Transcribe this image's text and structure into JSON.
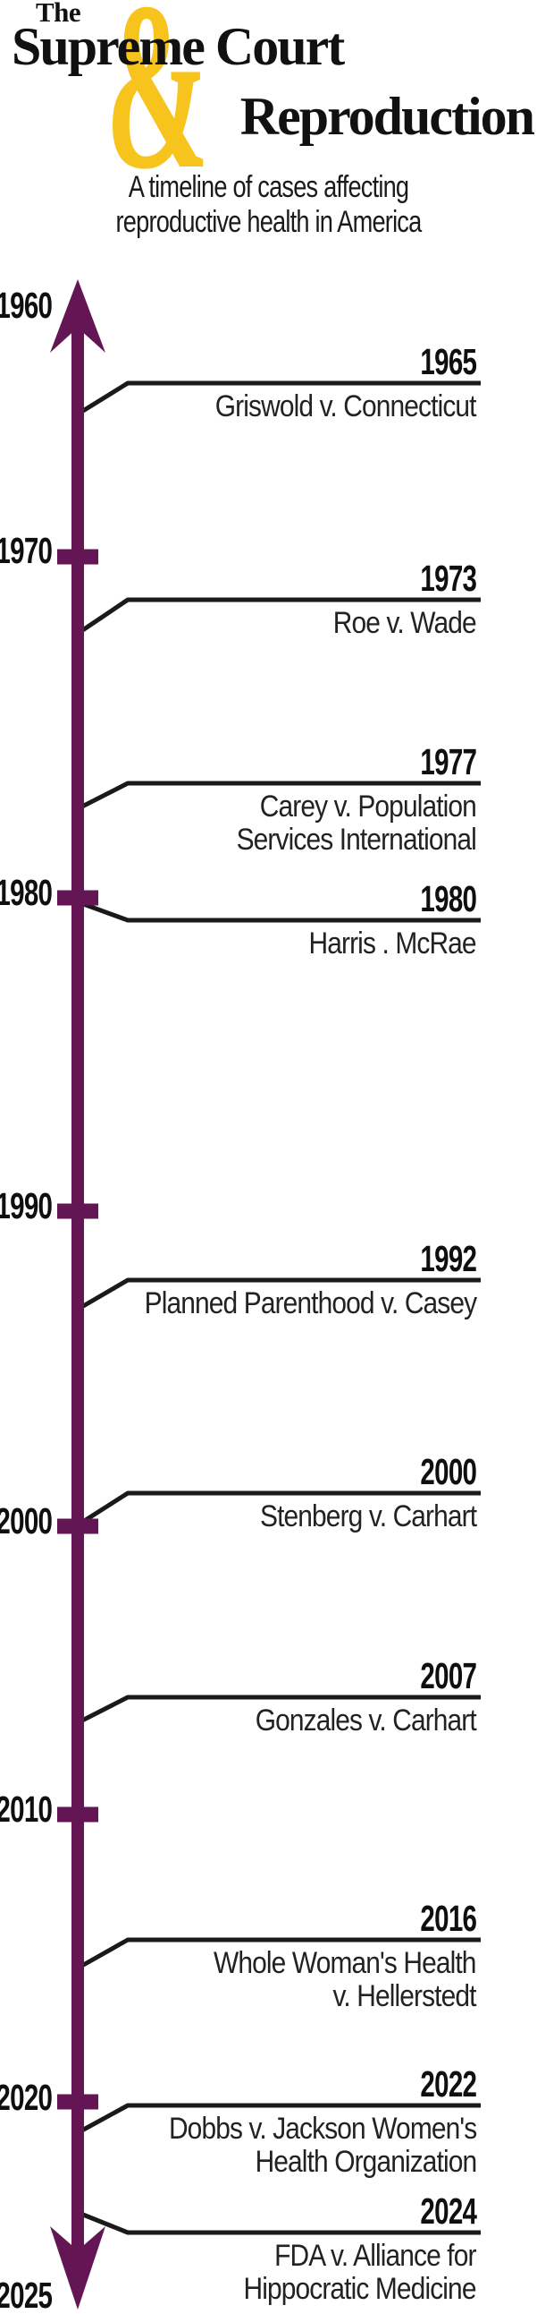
{
  "header": {
    "the": "The",
    "title_line1": "Supreme Court",
    "title_line2": "Reproduction",
    "ampersand": "&",
    "subtitle_line1": "A timeline of cases affecting",
    "subtitle_line2": "reproductive health in America"
  },
  "colors": {
    "accent_purple": "#631653",
    "accent_yellow": "#F7C41D",
    "connector_black": "#1a1a1a",
    "title_black": "#111111",
    "case_text": "#222222"
  },
  "timeline": {
    "axis_start_label": "1960",
    "axis_end_label": "2025",
    "decade_tick_labels": [
      "1960",
      "1970",
      "1980",
      "1990",
      "2000",
      "2010",
      "2020",
      "2025"
    ],
    "events": [
      {
        "year": "1965",
        "case_lines": [
          "Griswold v. Connecticut"
        ]
      },
      {
        "year": "1973",
        "case_lines": [
          "Roe v. Wade"
        ]
      },
      {
        "year": "1977",
        "case_lines": [
          "Carey v. Population",
          "Services International"
        ]
      },
      {
        "year": "1980",
        "case_lines": [
          "Harris . McRae"
        ]
      },
      {
        "year": "1992",
        "case_lines": [
          "Planned Parenthood v. Casey"
        ]
      },
      {
        "year": "2000",
        "case_lines": [
          "Stenberg v. Carhart"
        ]
      },
      {
        "year": "2007",
        "case_lines": [
          "Gonzales v. Carhart"
        ]
      },
      {
        "year": "2016",
        "case_lines": [
          "Whole Woman's Health",
          "v. Hellerstedt"
        ]
      },
      {
        "year": "2022",
        "case_lines": [
          "Dobbs v. Jackson Women's",
          "Health Organization"
        ]
      },
      {
        "year": "2024",
        "case_lines": [
          "FDA v. Alliance for",
          "Hippocratic Medicine"
        ]
      }
    ]
  }
}
